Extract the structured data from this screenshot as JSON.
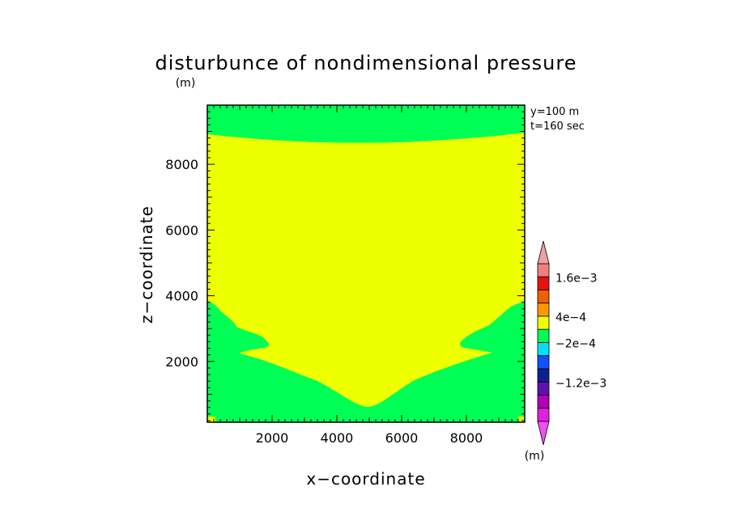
{
  "chart_data": {
    "type": "heatmap",
    "title": "disturbunce of nondimensional pressure",
    "unit_top": "(m)",
    "xlabel": "x−coordinate",
    "ylabel": "z−coordinate",
    "annotation_y": "y=100 m",
    "annotation_t": "t=160 sec",
    "xlim": [
      0,
      9800
    ],
    "ylim": [
      150,
      9800
    ],
    "x_ticks": [
      "2000",
      "4000",
      "6000",
      "8000"
    ],
    "y_ticks": [
      "2000",
      "4000",
      "6000",
      "8000"
    ],
    "colors": {
      "yellow": "#eeff00",
      "green": "#00ff55"
    },
    "regions": [
      {
        "name": "top-band",
        "color": "green",
        "description_value": "-2e-4 to 0"
      },
      {
        "name": "interior",
        "color": "yellow",
        "description_value": "0 to 4e-4"
      },
      {
        "name": "lower-lobes",
        "color": "green",
        "description_value": "-2e-4 to 0"
      }
    ],
    "colorbar": {
      "unit": "(m)",
      "labels": [
        "1.6e−3",
        "4e−4",
        "−2e−4",
        "−1.2e−3"
      ],
      "colors": [
        "#f08080",
        "#e81010",
        "#f06000",
        "#ff9900",
        "#eeff00",
        "#00ff55",
        "#00e0ff",
        "#1050ff",
        "#102090",
        "#6010b0",
        "#b000b8",
        "#e020e0"
      ]
    }
  }
}
